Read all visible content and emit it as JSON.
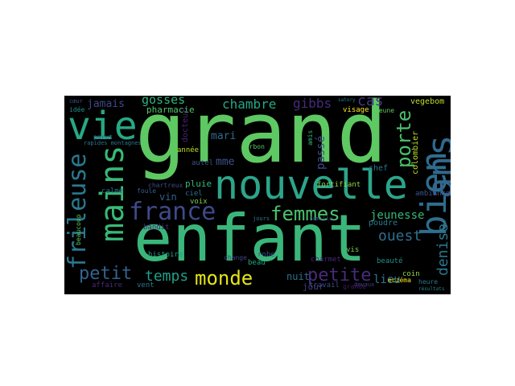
{
  "words": [
    {
      "text": "grand",
      "color": "#5ec962"
    },
    {
      "text": "enfant",
      "color": "#3bb67a"
    },
    {
      "text": "nouvelle",
      "color": "#2ca58a"
    },
    {
      "text": "vie",
      "color": "#2e6e8e"
    },
    {
      "text": "bien",
      "color": "#31688e"
    },
    {
      "text": "ans",
      "color": "#26a984"
    },
    {
      "text": "mains",
      "color": "#38b977"
    },
    {
      "text": "frileuse",
      "color": "#2a788e"
    },
    {
      "text": "france",
      "color": "#3e4a89"
    },
    {
      "text": "femmes",
      "color": "#4ac16d"
    },
    {
      "text": "monde",
      "color": "#e4e419"
    },
    {
      "text": "petite",
      "color": "#472c7a"
    },
    {
      "text": "petit",
      "color": "#33638d"
    },
    {
      "text": "temps",
      "color": "#1fa088"
    },
    {
      "text": "porte",
      "color": "#4ac16d"
    },
    {
      "text": "denise",
      "color": "#2a788e"
    },
    {
      "text": "ouest",
      "color": "#2d708e"
    },
    {
      "text": "jeunesse",
      "color": "#35b779"
    },
    {
      "text": "lieu",
      "color": "#2a788e"
    },
    {
      "text": "chambre",
      "color": "#22a884"
    },
    {
      "text": "gibbs",
      "color": "#472a7a"
    },
    {
      "text": "cas",
      "color": "#443983"
    },
    {
      "text": "gosses",
      "color": "#2fb47c"
    },
    {
      "text": "jamais",
      "color": "#3f4889"
    },
    {
      "text": "pharmacie",
      "color": "#52c569"
    },
    {
      "text": "nuit",
      "color": "#2f6c8e"
    },
    {
      "text": "jour",
      "color": "#3b528b"
    },
    {
      "text": "mari",
      "color": "#355f8d"
    },
    {
      "text": "mme",
      "color": "#2c718e"
    },
    {
      "text": "vin",
      "color": "#433e85"
    },
    {
      "text": "passé",
      "color": "#3e4c8a"
    },
    {
      "text": "vegebom",
      "color": "#bddf26"
    },
    {
      "text": "colombier",
      "color": "#b8de29"
    },
    {
      "text": "chef",
      "color": "#2a788e"
    },
    {
      "text": "visage",
      "color": "#fde725"
    },
    {
      "text": "jeune",
      "color": "#5ec962"
    },
    {
      "text": "ambiance",
      "color": "#3b528b"
    },
    {
      "text": "fortifiant",
      "color": "#8fd744"
    },
    {
      "text": "docteur",
      "color": "#482475"
    },
    {
      "text": "pluie",
      "color": "#35b779"
    },
    {
      "text": "ciel",
      "color": "#2c718e"
    },
    {
      "text": "voix",
      "color": "#7ad151"
    },
    {
      "text": "autel",
      "color": "#3b528b"
    },
    {
      "text": "année",
      "color": "#bddf26"
    },
    {
      "text": "calme",
      "color": "#2a788e"
    },
    {
      "text": "foule",
      "color": "#355f8d"
    },
    {
      "text": "chartreux",
      "color": "#3e4a89"
    },
    {
      "text": "bandit",
      "color": "#472d7b"
    },
    {
      "text": "beaucoup",
      "color": "#5ec962"
    },
    {
      "text": "histoire",
      "color": "#1f9e89"
    },
    {
      "text": "poudre",
      "color": "#2a788e"
    },
    {
      "text": "charmet",
      "color": "#482878"
    },
    {
      "text": "beauté",
      "color": "#21918c"
    },
    {
      "text": "vis",
      "color": "#7ad151"
    },
    {
      "text": "coin",
      "color": "#8fd744"
    },
    {
      "text": "eczéma",
      "color": "#fde725"
    },
    {
      "text": "travail",
      "color": "#3e4a89"
    },
    {
      "text": "grande",
      "color": "#48186a"
    },
    {
      "text": "heure",
      "color": "#2a788e"
    },
    {
      "text": "beau",
      "color": "#22a884"
    },
    {
      "text": "robe",
      "color": "#3b528b"
    },
    {
      "text": "change",
      "color": "#414487"
    },
    {
      "text": "vent",
      "color": "#2a788e"
    },
    {
      "text": "affaire",
      "color": "#482878"
    },
    {
      "text": "durbon",
      "color": "#5ec962"
    },
    {
      "text": "idée",
      "color": "#21918c"
    },
    {
      "text": "parut",
      "color": "#31688e"
    },
    {
      "text": "cœur",
      "color": "#3b528b"
    },
    {
      "text": "amis",
      "color": "#35b779"
    },
    {
      "text": "rapides montagnes",
      "color": "#2a788e"
    },
    {
      "text": "famille",
      "color": "#3e4a89"
    },
    {
      "text": "jours",
      "color": "#2a788e"
    },
    {
      "text": "devaux",
      "color": "#433e85"
    },
    {
      "text": "résultats",
      "color": "#26828e"
    },
    {
      "text": "satory",
      "color": "#2a788e"
    }
  ]
}
